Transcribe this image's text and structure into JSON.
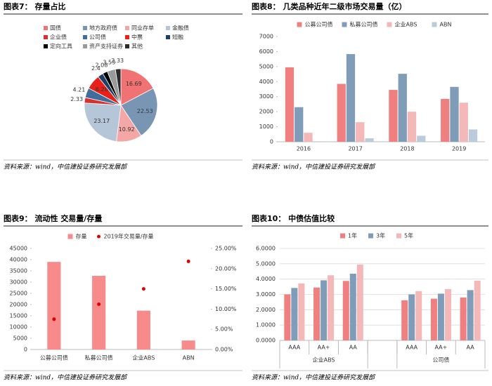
{
  "chart_data": [
    {
      "type": "pie",
      "title": "图表7： 存量占比",
      "source": "资料来源：wind，中信建投证券研究发展部",
      "categories": [
        "国债",
        "地方政府债",
        "同业存单",
        "金融债",
        "企业债",
        "公司债",
        "中票",
        "短融",
        "定向工具",
        "资产支持证券",
        "其他"
      ],
      "values": [
        16.69,
        22.53,
        10.92,
        23.17,
        2.33,
        4.21,
        6.28,
        2.4,
        2.08,
        3.53,
        2.33
      ],
      "colors": [
        "#f07272",
        "#7896b4",
        "#f4a7a7",
        "#b4c6d8",
        "#d93030",
        "#3f6e9e",
        "#e8201a",
        "#1f3f66",
        "#000000",
        "#9a9a9a",
        "#2a2a2a"
      ]
    },
    {
      "type": "bar",
      "title": "图表8： 几类品种近年二级市场交易量（亿）",
      "source": "资料来源：wind，中信建投证券研究发展部",
      "categories": [
        "2016",
        "2017",
        "2018",
        "2019"
      ],
      "series": [
        {
          "name": "公募公司债",
          "color": "#f07f7f",
          "values": [
            4950,
            3850,
            3450,
            2850
          ]
        },
        {
          "name": "私募公司债",
          "color": "#7f9db9",
          "values": [
            2300,
            5830,
            4520,
            3650
          ]
        },
        {
          "name": "企业ABS",
          "color": "#f5b8b8",
          "values": [
            600,
            1300,
            2000,
            2600
          ]
        },
        {
          "name": "ABN",
          "color": "#b9cbdc",
          "values": [
            30,
            230,
            400,
            820
          ]
        }
      ],
      "ylim": [
        0,
        7000
      ],
      "yticks": [
        0,
        1000,
        2000,
        3000,
        4000,
        5000,
        6000,
        7000
      ],
      "grid": false
    },
    {
      "type": "combo",
      "title": "图表9： 流动性 交易量/存量",
      "source": "资料来源：wind，中信建投证券研究发展部",
      "categories": [
        "公募公司债",
        "私募公司债",
        "企业ABS",
        "ABN"
      ],
      "series": [
        {
          "name": "存量",
          "color": "#f78a8a",
          "values": [
            39000,
            32800,
            17300,
            4000
          ]
        },
        {
          "name": "2019年交易量/存量",
          "color": "#e00000",
          "axis": "y2",
          "values": [
            7.5,
            11.2,
            15.0,
            21.8
          ]
        }
      ],
      "ylim": [
        0,
        45000
      ],
      "yticks": [
        0,
        5000,
        10000,
        15000,
        20000,
        25000,
        30000,
        35000,
        40000,
        45000
      ],
      "y2lim": [
        0,
        25
      ],
      "y2ticks": [
        {
          "value": 0,
          "label": "0.00%"
        },
        {
          "value": 5,
          "label": "5.00%"
        },
        {
          "value": 10,
          "label": "10.00%"
        },
        {
          "value": 15,
          "label": "15.00%"
        },
        {
          "value": 20,
          "label": "20.00%"
        },
        {
          "value": 25,
          "label": "25.00%"
        }
      ]
    },
    {
      "type": "bar",
      "title": "图表10： 中债估值比较",
      "source": "资料来源：wind，中信建投证券研究发展部",
      "categories": [
        "AAA",
        "AA+",
        "AA",
        null,
        "AAA",
        "AA+",
        "AA"
      ],
      "groups": [
        "企业ABS",
        "公司债"
      ],
      "series": [
        {
          "name": "1年",
          "color": "#f07f7f",
          "values": [
            3.0,
            3.45,
            3.88,
            null,
            2.62,
            2.72,
            2.8
          ]
        },
        {
          "name": "3年",
          "color": "#7f9db9",
          "values": [
            3.42,
            3.92,
            4.35,
            null,
            3.0,
            3.05,
            3.28
          ]
        },
        {
          "name": "5年",
          "color": "#f5b8b8",
          "values": [
            3.72,
            4.25,
            4.95,
            null,
            3.22,
            3.35,
            3.9
          ]
        }
      ],
      "ylim": [
        0,
        6
      ],
      "yticks": [
        {
          "value": 0,
          "label": "0.0000"
        },
        {
          "value": 1,
          "label": "1.0000"
        },
        {
          "value": 2,
          "label": "2.0000"
        },
        {
          "value": 3,
          "label": "3.0000"
        },
        {
          "value": 4,
          "label": "4.0000"
        },
        {
          "value": 5,
          "label": "5.0000"
        },
        {
          "value": 6,
          "label": "6.0000"
        }
      ],
      "grid": true
    }
  ]
}
